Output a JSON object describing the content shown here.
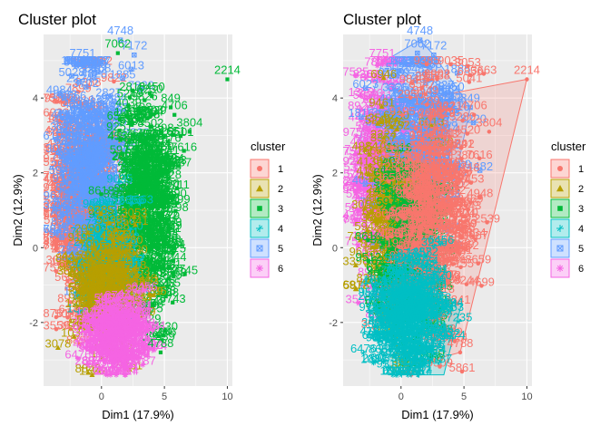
{
  "chart_data": [
    {
      "type": "scatter",
      "title": "Cluster plot",
      "xlabel": "Dim1 (17.9%)",
      "ylabel": "Dim2 (12.9%)",
      "xlim": [
        -4.6,
        10.4
      ],
      "ylim": [
        -3.7,
        5.7
      ],
      "xticks": [
        0,
        5,
        10
      ],
      "yticks": [
        -2,
        0,
        2,
        4
      ],
      "grid": true,
      "hulls": false,
      "legend": {
        "title": "cluster",
        "position": "right",
        "entries": [
          "1",
          "2",
          "3",
          "4",
          "5",
          "6"
        ]
      },
      "labeled_points": [
        {
          "label": "4748",
          "x": 1.5,
          "y": 5.55,
          "cluster": "5"
        },
        {
          "label": "7062",
          "x": 1.3,
          "y": 5.2,
          "cluster": "3"
        },
        {
          "label": "7172",
          "x": 2.6,
          "y": 5.15,
          "cluster": "5"
        },
        {
          "label": "2214",
          "x": 10.0,
          "y": 4.5,
          "cluster": "3"
        },
        {
          "label": "7751",
          "x": -1.5,
          "y": 4.95,
          "cluster": "5"
        },
        {
          "label": "8450",
          "x": 4.0,
          "y": 4.05,
          "cluster": "3"
        },
        {
          "label": "849",
          "x": 5.5,
          "y": 3.75,
          "cluster": "3"
        },
        {
          "label": "4706",
          "x": 5.8,
          "y": 3.55,
          "cluster": "3"
        },
        {
          "label": "3804",
          "x": 7.0,
          "y": 3.1,
          "cluster": "3"
        },
        {
          "label": "4788",
          "x": 4.7,
          "y": -2.8,
          "cluster": "3"
        }
      ],
      "bulk_labels_note_values": [
        "6596",
        "1105",
        "9316",
        "5231",
        "4335"
      ]
    },
    {
      "type": "scatter",
      "title": "Cluster plot",
      "xlabel": "Dim1 (17.9%)",
      "ylabel": "Dim2 (12.9%)",
      "xlim": [
        -4.6,
        10.4
      ],
      "ylim": [
        -3.7,
        5.7
      ],
      "xticks": [
        0,
        5,
        10
      ],
      "yticks": [
        -2,
        0,
        2,
        4
      ],
      "grid": true,
      "hulls": true,
      "legend": {
        "title": "cluster",
        "position": "right",
        "entries": [
          "1",
          "2",
          "3",
          "4",
          "5",
          "6"
        ]
      },
      "labeled_points": [
        {
          "label": "4748",
          "x": 1.5,
          "y": 5.55,
          "cluster": "5"
        },
        {
          "label": "7062",
          "x": 1.3,
          "y": 5.2,
          "cluster": "5"
        },
        {
          "label": "7172",
          "x": 2.6,
          "y": 5.15,
          "cluster": "5"
        },
        {
          "label": "2214",
          "x": 10.0,
          "y": 4.5,
          "cluster": "1"
        },
        {
          "label": "7751",
          "x": -1.5,
          "y": 4.95,
          "cluster": "6"
        },
        {
          "label": "8450",
          "x": 4.0,
          "y": 4.05,
          "cluster": "5"
        },
        {
          "label": "849",
          "x": 5.5,
          "y": 3.75,
          "cluster": "5"
        },
        {
          "label": "4706",
          "x": 5.8,
          "y": 3.55,
          "cluster": "1"
        },
        {
          "label": "3804",
          "x": 7.0,
          "y": 3.1,
          "cluster": "1"
        },
        {
          "label": "4788",
          "x": 4.7,
          "y": -2.8,
          "cluster": "1"
        }
      ],
      "bulk_labels_note_values": [
        "6596",
        "1105",
        "9316",
        "5231",
        "4335"
      ]
    }
  ],
  "cluster_colors": {
    "1": "#F8766D",
    "2": "#B79F00",
    "3": "#00BA38",
    "4": "#00BFC4",
    "5": "#619CFF",
    "6": "#F564E3"
  },
  "panel_background": "#EBEBEB",
  "gridline_color": "#FFFFFF"
}
